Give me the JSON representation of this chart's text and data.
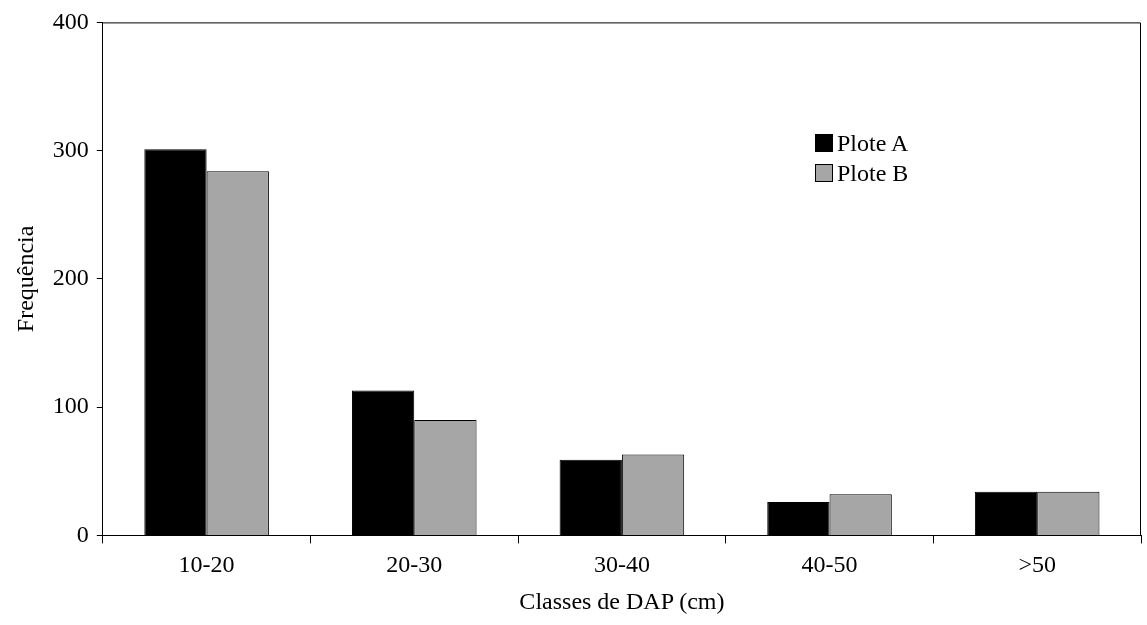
{
  "chart_data": {
    "type": "bar",
    "xlabel": "Classes de DAP (cm)",
    "ylabel": "Frequência",
    "categories": [
      "10-20",
      "20-30",
      "30-40",
      "40-50",
      ">50"
    ],
    "series": [
      {
        "name": "Plote A",
        "color": "#000000",
        "values": [
          301,
          113,
          59,
          26,
          34
        ]
      },
      {
        "name": "Plote B",
        "color": "#a6a6a6",
        "values": [
          284,
          90,
          63,
          32,
          34
        ]
      }
    ],
    "ylim": [
      0,
      400
    ],
    "yticks": [
      0,
      100,
      200,
      300,
      400
    ],
    "grid": false,
    "legend": "top right"
  }
}
